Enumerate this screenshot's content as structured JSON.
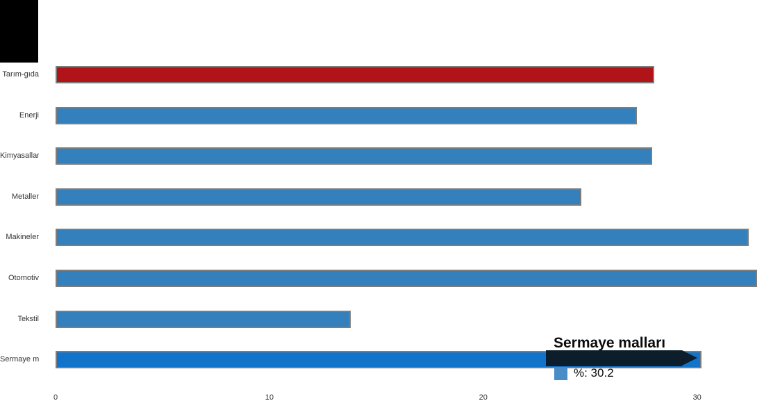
{
  "page": {
    "background": "#ffffff"
  },
  "decor": {
    "corner_block_color": "#000000"
  },
  "chart_data": {
    "type": "bar",
    "orientation": "horizontal",
    "title": "",
    "xlabel": "",
    "ylabel": "",
    "categories": [
      "Tarım-gıda",
      "Enerji",
      "Kimyasallar",
      "Metaller",
      "Makineler",
      "Otomotiv",
      "Tekstil",
      "Sermaye malları"
    ],
    "series": [
      {
        "name": "%",
        "values": [
          28.0,
          27.2,
          27.9,
          24.6,
          32.4,
          32.8,
          13.8,
          30.2
        ]
      }
    ],
    "x_ticks": [
      "0",
      "10",
      "20",
      "30"
    ],
    "x_tick_values": [
      0,
      10,
      20,
      30
    ],
    "xlim": [
      0,
      33.2
    ],
    "grid": false,
    "legend_position": "none",
    "bar_colors": [
      "#b01419",
      "#3380bc",
      "#3380bc",
      "#3380bc",
      "#3380bc",
      "#3380bc",
      "#3380bc",
      "#1273cb"
    ],
    "bar_border_color": "#7d7d7d",
    "highlight_color": "#b01419",
    "hover_color": "#1273cb",
    "label_color": "#333333"
  },
  "tooltip": {
    "title": "Sermaye malları",
    "series_name": "%",
    "value": "30.2",
    "line_text": "%: 30.2",
    "background_color": "#0c1e2c",
    "marker_color": "#4a8cc8"
  }
}
